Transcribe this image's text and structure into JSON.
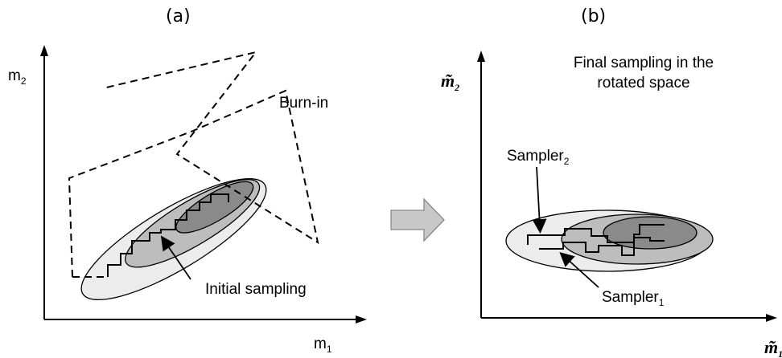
{
  "panel_a": {
    "label": "(a)",
    "y_axis": {
      "base": "m",
      "sub": "2"
    },
    "x_axis": {
      "base": "m",
      "sub": "1"
    },
    "burn_in_label": "Burn-in",
    "initial_label": "Initial sampling"
  },
  "arrow": {
    "fill": "#c8c8c8",
    "stroke": "#888888"
  },
  "panel_b": {
    "label": "(b)",
    "y_axis": {
      "base": "m̃",
      "sub": "2"
    },
    "x_axis": {
      "base": "m̃",
      "sub": "1"
    },
    "title_line1": "Final sampling in the",
    "title_line2": "rotated space",
    "sampler2": {
      "base": "Sampler",
      "sub": "2"
    },
    "sampler1": {
      "base": "Sampler",
      "sub": "1"
    }
  },
  "colors": {
    "outer_ellipse": "#ececec",
    "middle_ellipse": "#bdbdbd",
    "inner_ellipse": "#8a8a8a",
    "lines": "#000000"
  }
}
